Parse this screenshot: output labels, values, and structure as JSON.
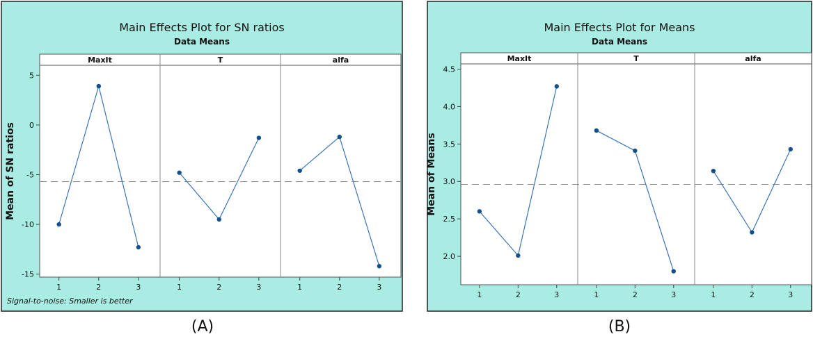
{
  "colors": {
    "panel_bg": "#a8ece3",
    "plot_bg": "#ffffff",
    "line": "#3a74b8",
    "marker": "#14508c",
    "ref_line": "#8a8a8a",
    "text": "#111111"
  },
  "chart_data": [
    {
      "type": "line",
      "title": "Main Effects Plot for SN ratios",
      "subtitle": "Data Means",
      "ylabel": "Mean of SN ratios",
      "xlabel": "",
      "ylim": [
        -15.3,
        6.0
      ],
      "yticks": [
        5,
        0,
        -5,
        -10,
        -15
      ],
      "reference_line": -5.7,
      "footnote": "Signal-to-noise: Smaller is better",
      "caption": "(A)",
      "grid": false,
      "facets": [
        {
          "name": "MaxIt",
          "x": [
            "1",
            "2",
            "3"
          ],
          "values": [
            -10.0,
            3.9,
            -12.3
          ]
        },
        {
          "name": "T",
          "x": [
            "1",
            "2",
            "3"
          ],
          "values": [
            -4.8,
            -9.5,
            -1.3
          ]
        },
        {
          "name": "alfa",
          "x": [
            "1",
            "2",
            "3"
          ],
          "values": [
            -4.6,
            -1.2,
            -14.2
          ]
        }
      ]
    },
    {
      "type": "line",
      "title": "Main Effects Plot for Means",
      "subtitle": "Data Means",
      "ylabel": "Mean of Means",
      "xlabel": "",
      "ylim": [
        1.62,
        4.57
      ],
      "yticks": [
        4.5,
        4.0,
        3.5,
        3.0,
        2.5,
        2.0
      ],
      "yticklabels": [
        "4.5",
        "4.0",
        "3.5",
        "3.0",
        "2.5",
        "2.0"
      ],
      "reference_line": 2.96,
      "footnote": "",
      "caption": "(B)",
      "grid": false,
      "facets": [
        {
          "name": "MaxIt",
          "x": [
            "1",
            "2",
            "3"
          ],
          "values": [
            2.6,
            2.01,
            4.27
          ]
        },
        {
          "name": "T",
          "x": [
            "1",
            "2",
            "3"
          ],
          "values": [
            3.68,
            3.41,
            1.8
          ]
        },
        {
          "name": "alfa",
          "x": [
            "1",
            "2",
            "3"
          ],
          "values": [
            3.14,
            2.32,
            3.43
          ]
        }
      ]
    }
  ]
}
